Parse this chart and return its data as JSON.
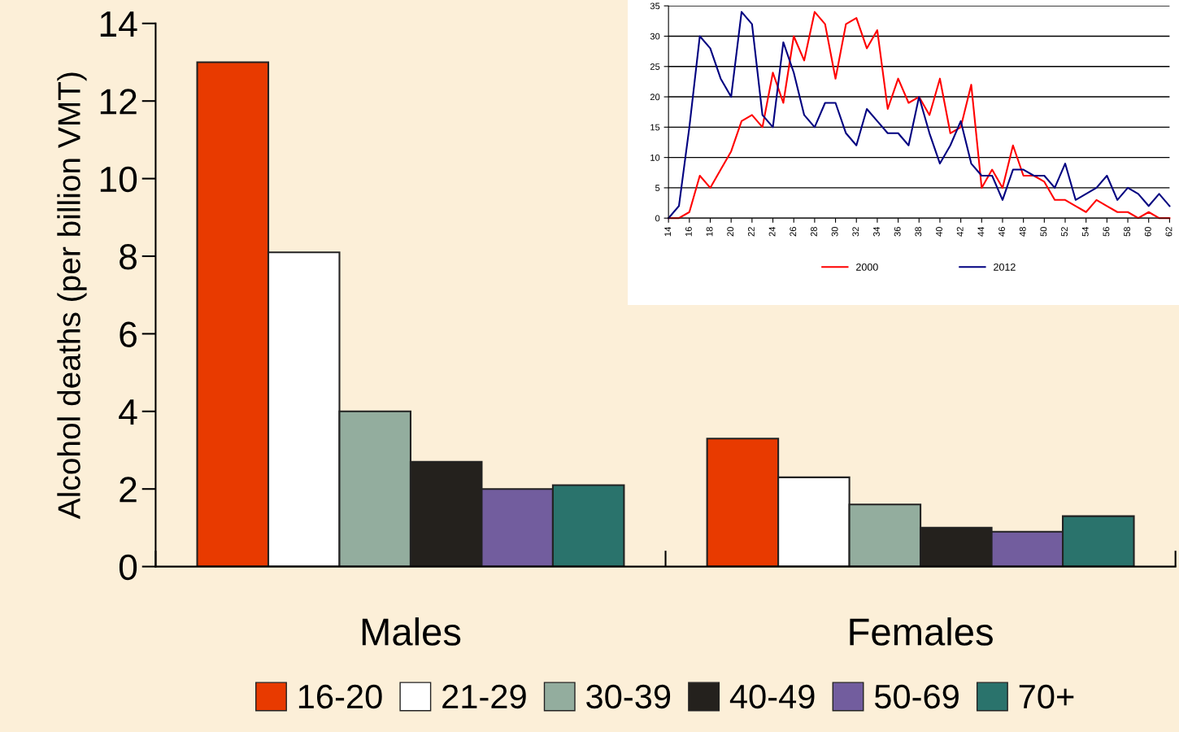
{
  "chart_data": [
    {
      "type": "bar",
      "ylabel": "Alcohol deaths (per billion VMT)",
      "categories": [
        "Males",
        "Females"
      ],
      "series": [
        {
          "name": "16-20",
          "color": "#e83a00",
          "values": [
            13.0,
            3.3
          ]
        },
        {
          "name": "21-29",
          "color": "#ffffff",
          "values": [
            8.1,
            2.3
          ]
        },
        {
          "name": "30-39",
          "color": "#93ad9e",
          "values": [
            4.0,
            1.6
          ]
        },
        {
          "name": "40-49",
          "color": "#24211d",
          "values": [
            2.7,
            1.0
          ]
        },
        {
          "name": "50-69",
          "color": "#725d9e",
          "values": [
            2.0,
            0.9
          ]
        },
        {
          "name": "70+",
          "color": "#2a736c",
          "values": [
            2.1,
            1.3
          ]
        }
      ],
      "ylim": [
        0,
        14
      ],
      "yticks": [
        0,
        2,
        4,
        6,
        8,
        10,
        12,
        14
      ],
      "grid": false,
      "legend": "bottom"
    },
    {
      "type": "line",
      "x": [
        14,
        15,
        16,
        17,
        18,
        19,
        20,
        21,
        22,
        23,
        24,
        25,
        26,
        27,
        28,
        29,
        30,
        31,
        32,
        33,
        34,
        35,
        36,
        37,
        38,
        39,
        40,
        41,
        42,
        43,
        44,
        45,
        46,
        47,
        48,
        49,
        50,
        51,
        52,
        53,
        54,
        55,
        56,
        57,
        58,
        59,
        60,
        61,
        62
      ],
      "series": [
        {
          "name": "2000",
          "color": "#ff0000",
          "values": [
            0,
            0,
            1,
            7,
            5,
            8,
            11,
            16,
            17,
            15,
            24,
            19,
            30,
            26,
            34,
            32,
            23,
            32,
            33,
            28,
            31,
            18,
            23,
            19,
            20,
            17,
            23,
            14,
            15,
            22,
            5,
            8,
            5,
            12,
            7,
            7,
            6,
            3,
            3,
            2,
            1,
            3,
            2,
            1,
            1,
            0,
            1,
            0,
            0
          ]
        },
        {
          "name": "2012",
          "color": "#000080",
          "values": [
            0,
            2,
            15,
            30,
            28,
            23,
            20,
            34,
            32,
            17,
            15,
            29,
            24,
            17,
            15,
            19,
            19,
            14,
            12,
            18,
            16,
            14,
            14,
            12,
            20,
            14,
            9,
            12,
            16,
            9,
            7,
            7,
            3,
            8,
            8,
            7,
            7,
            5,
            9,
            3,
            4,
            5,
            7,
            3,
            5,
            4,
            2,
            4,
            2
          ]
        }
      ],
      "xlim": [
        14,
        62
      ],
      "xticks": [
        14,
        16,
        18,
        20,
        22,
        24,
        26,
        28,
        30,
        32,
        34,
        36,
        38,
        40,
        42,
        44,
        46,
        48,
        50,
        52,
        54,
        56,
        58,
        60,
        62
      ],
      "ylim": [
        0,
        35
      ],
      "yticks": [
        0,
        5,
        10,
        15,
        20,
        25,
        30,
        35
      ],
      "grid": "y",
      "legend": "bottom",
      "marker": "none",
      "line_style": "solid"
    }
  ]
}
